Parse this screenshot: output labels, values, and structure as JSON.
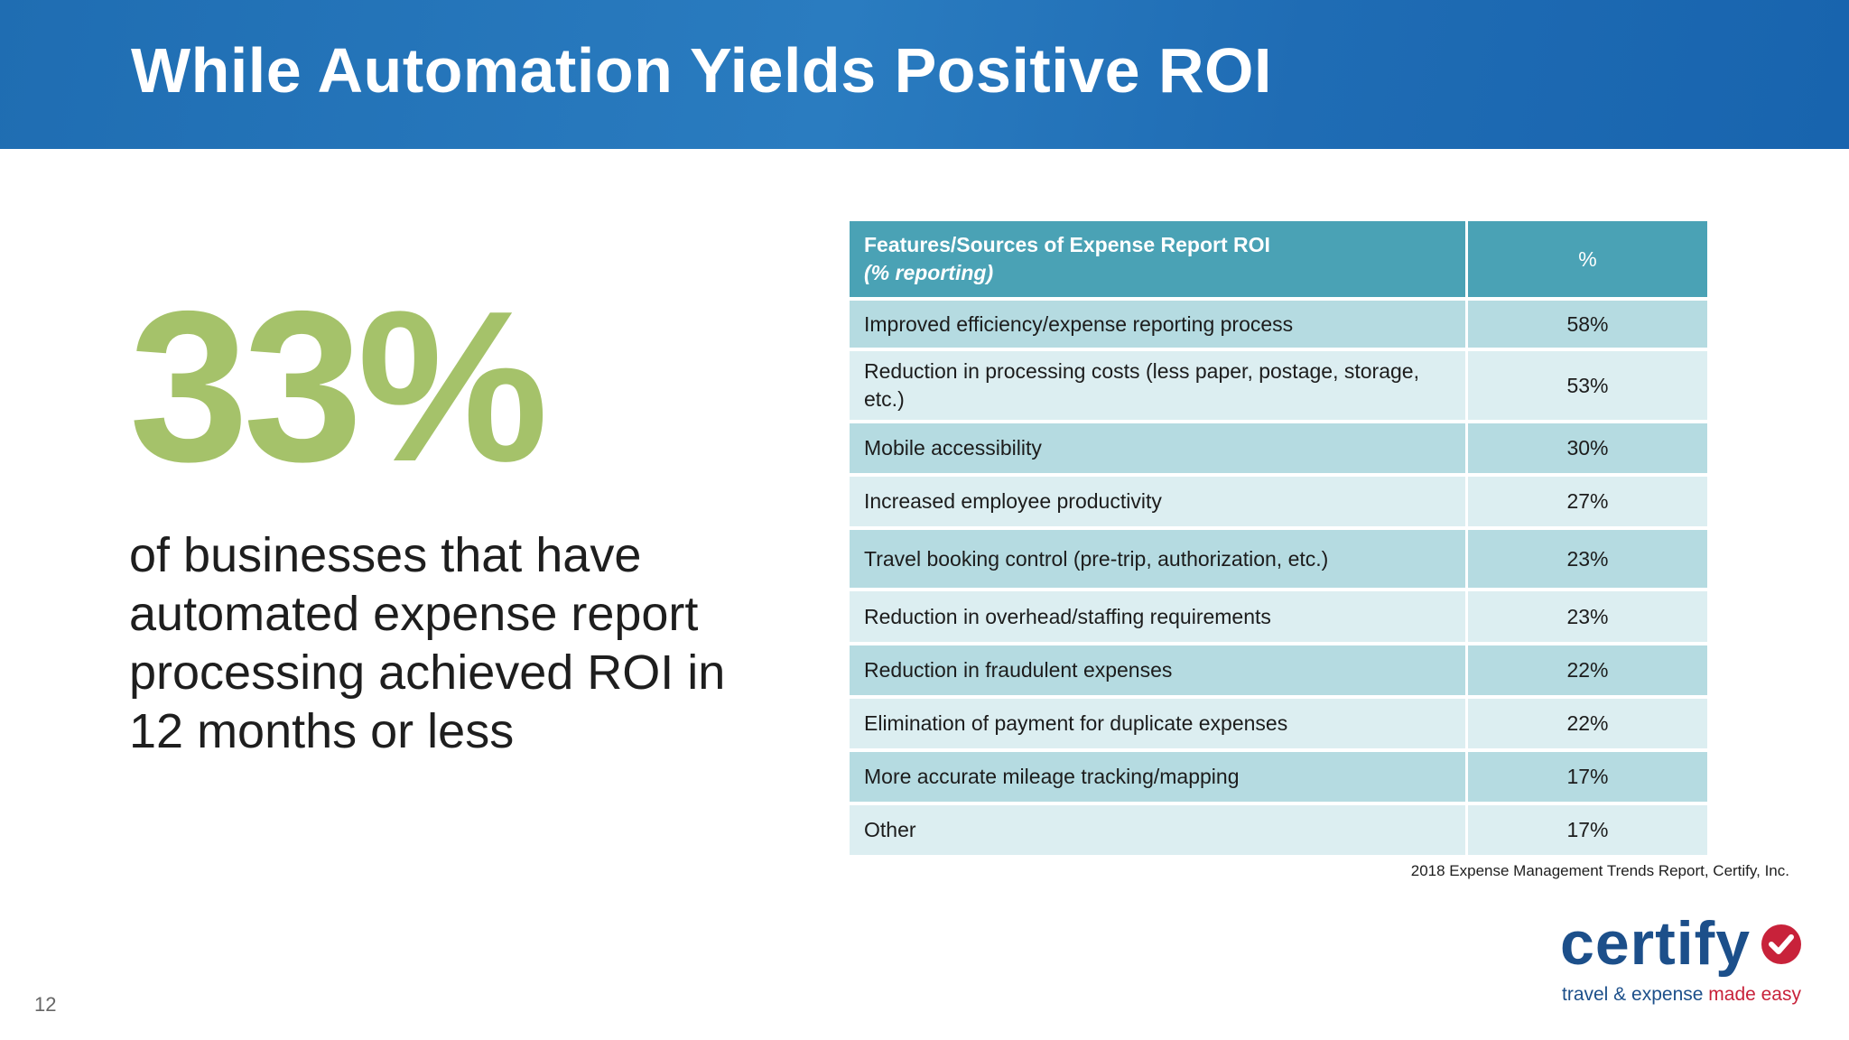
{
  "header": {
    "title": "While Automation Yields Positive ROI"
  },
  "stat": {
    "value": "33%",
    "description": "of businesses that have automated expense report processing achieved ROI in 12 months or less"
  },
  "table": {
    "header_col1_line1": "Features/Sources of Expense Report ROI",
    "header_col1_line2": "(% reporting)",
    "header_col2": "%",
    "rows": [
      {
        "feature": "Improved efficiency/expense reporting process",
        "percent": "58%"
      },
      {
        "feature": "Reduction in processing costs (less paper, postage, storage, etc.)",
        "percent": "53%"
      },
      {
        "feature": "Mobile accessibility",
        "percent": "30%"
      },
      {
        "feature": "Increased employee productivity",
        "percent": "27%"
      },
      {
        "feature": "Travel booking control (pre-trip, authorization, etc.)",
        "percent": "23%"
      },
      {
        "feature": "Reduction in overhead/staffing requirements",
        "percent": "23%"
      },
      {
        "feature": "Reduction in fraudulent expenses",
        "percent": "22%"
      },
      {
        "feature": "Elimination of payment for duplicate expenses",
        "percent": "22%"
      },
      {
        "feature": "More accurate mileage tracking/mapping",
        "percent": "17%"
      },
      {
        "feature": "Other",
        "percent": "17%"
      }
    ]
  },
  "source": "2018 Expense Management Trends Report, Certify, Inc.",
  "page_number": "12",
  "logo": {
    "name": "certify",
    "tagline_start": "travel & expense ",
    "tagline_accent": "made easy",
    "icon": "checkmark-circle-icon"
  },
  "colors": {
    "header_blue": "#1f6db2",
    "stat_green": "#a5c26a",
    "table_header": "#4aa2b5",
    "row_dark": "#b5dbe1",
    "row_light": "#dceef1",
    "logo_navy": "#1c4f8a",
    "logo_red": "#c8223a"
  }
}
